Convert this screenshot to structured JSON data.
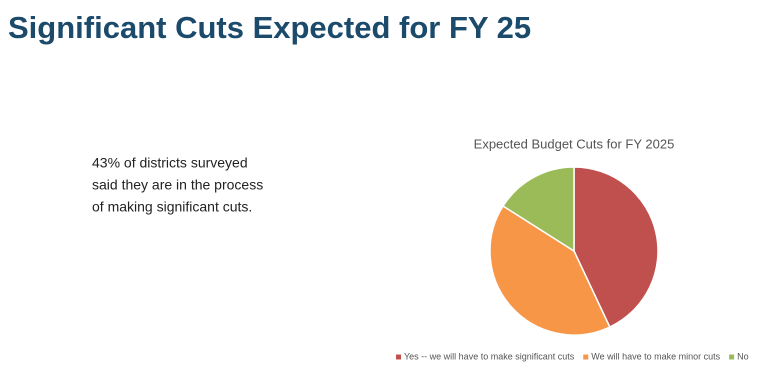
{
  "slide": {
    "title": "Significant Cuts Expected for FY 25",
    "body": [
      "43% of districts surveyed",
      "said they are in the process",
      "of making significant cuts."
    ]
  },
  "chart_data": {
    "type": "pie",
    "title": "Expected Budget Cuts for FY 2025",
    "categories": [
      "Yes -- we will have to make significant cuts",
      "We will have to make minor cuts",
      "No"
    ],
    "values": [
      43,
      41,
      16
    ],
    "colors": [
      "#c0504d",
      "#f79646",
      "#9bbb59"
    ],
    "legend": "bottom"
  }
}
